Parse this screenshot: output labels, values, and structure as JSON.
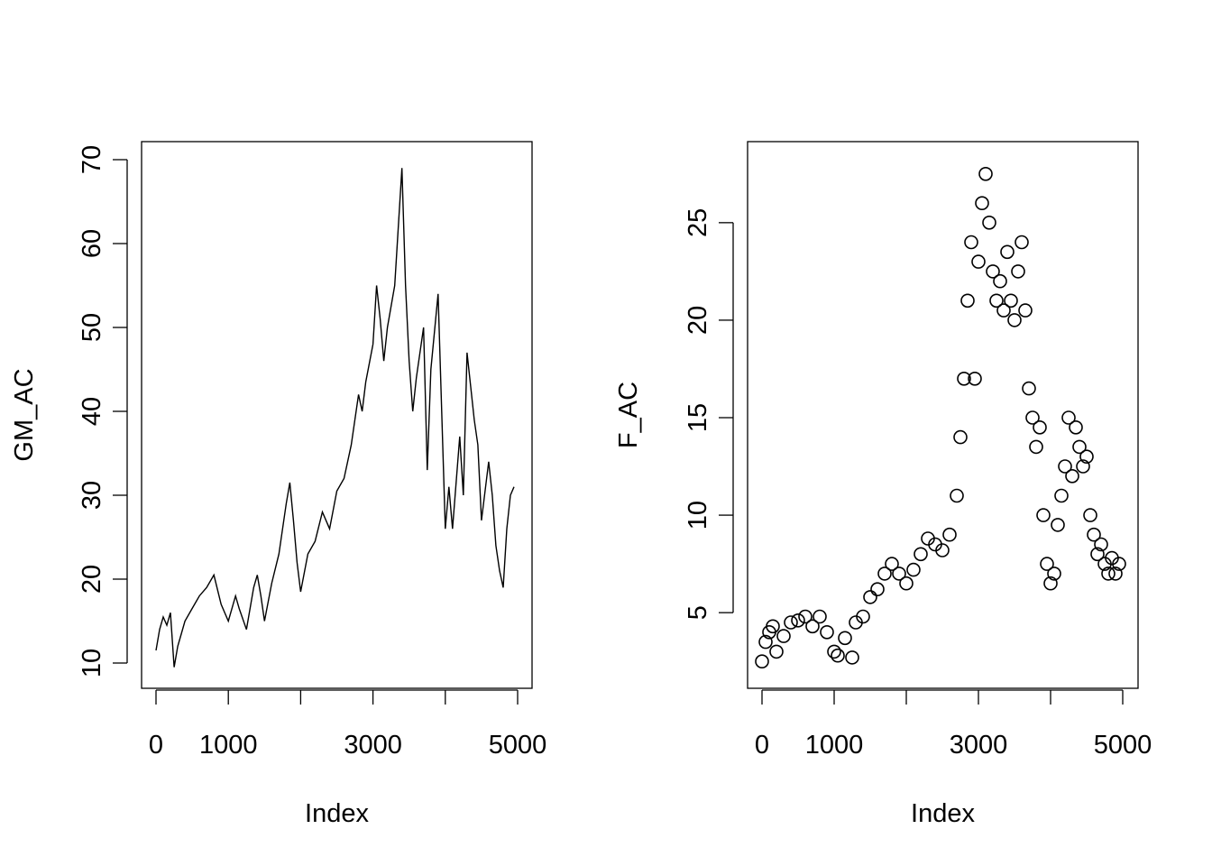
{
  "chart_data": [
    {
      "type": "line",
      "xlabel": "Index",
      "ylabel": "GM_AC",
      "xlim": [
        0,
        5000
      ],
      "ylim": [
        10,
        70
      ],
      "x_ticks": [
        0,
        1000,
        2000,
        3000,
        4000,
        5000
      ],
      "x_tick_labels": [
        "0",
        "1000",
        "",
        "3000",
        "",
        "5000"
      ],
      "y_ticks": [
        10,
        20,
        30,
        40,
        50,
        60,
        70
      ],
      "y_tick_labels": [
        "10",
        "20",
        "30",
        "40",
        "50",
        "60",
        "70"
      ],
      "series": [
        {
          "x": [
            0,
            50,
            100,
            150,
            200,
            250,
            300,
            350,
            400,
            500,
            600,
            700,
            800,
            900,
            1000,
            1100,
            1150,
            1250,
            1350,
            1400,
            1450,
            1500,
            1600,
            1700,
            1800,
            1850,
            1900,
            1950,
            2000,
            2100,
            2200,
            2300,
            2400,
            2500,
            2600,
            2700,
            2800,
            2850,
            2900,
            3000,
            3050,
            3100,
            3150,
            3200,
            3300,
            3350,
            3400,
            3450,
            3500,
            3550,
            3600,
            3700,
            3750,
            3800,
            3900,
            3950,
            4000,
            4050,
            4100,
            4200,
            4250,
            4300,
            4350,
            4400,
            4450,
            4500,
            4600,
            4650,
            4700,
            4750,
            4800,
            4850,
            4900,
            4950
          ],
          "values": [
            11.5,
            14.0,
            15.5,
            14.5,
            16.0,
            9.5,
            12.0,
            13.5,
            15.0,
            16.5,
            18.0,
            19.0,
            20.5,
            17.0,
            15.0,
            18.0,
            16.5,
            14.0,
            19.0,
            20.5,
            18.0,
            15.0,
            19.5,
            23.0,
            29.0,
            31.5,
            27.0,
            22.0,
            18.5,
            23.0,
            24.5,
            28.0,
            26.0,
            30.5,
            32.0,
            36.0,
            42.0,
            40.0,
            43.5,
            48.0,
            55.0,
            51.0,
            46.0,
            50.0,
            55.0,
            62.0,
            69.0,
            55.0,
            46.0,
            40.0,
            44.0,
            50.0,
            33.0,
            45.0,
            54.0,
            40.0,
            26.0,
            31.0,
            26.0,
            37.0,
            30.0,
            47.0,
            43.0,
            39.0,
            36.0,
            27.0,
            34.0,
            30.0,
            24.0,
            21.0,
            19.0,
            26.0,
            30.0,
            31.0
          ]
        }
      ]
    },
    {
      "type": "scatter",
      "xlabel": "Index",
      "ylabel": "F_AC",
      "xlim": [
        0,
        5000
      ],
      "ylim": [
        2,
        28
      ],
      "x_ticks": [
        0,
        1000,
        2000,
        3000,
        4000,
        5000
      ],
      "x_tick_labels": [
        "0",
        "1000",
        "",
        "3000",
        "",
        "5000"
      ],
      "y_ticks": [
        5,
        10,
        15,
        20,
        25
      ],
      "y_tick_labels": [
        "5",
        "10",
        "15",
        "20",
        "25"
      ],
      "series": [
        {
          "x": [
            0,
            50,
            100,
            150,
            200,
            300,
            400,
            500,
            600,
            700,
            800,
            900,
            1000,
            1050,
            1150,
            1250,
            1300,
            1400,
            1500,
            1600,
            1700,
            1800,
            1900,
            2000,
            2100,
            2200,
            2300,
            2400,
            2500,
            2600,
            2700,
            2750,
            2800,
            2850,
            2900,
            2950,
            3000,
            3050,
            3100,
            3150,
            3200,
            3250,
            3300,
            3350,
            3400,
            3450,
            3500,
            3550,
            3600,
            3650,
            3700,
            3750,
            3800,
            3850,
            3900,
            3950,
            4000,
            4050,
            4100,
            4150,
            4200,
            4250,
            4300,
            4350,
            4400,
            4450,
            4500,
            4550,
            4600,
            4650,
            4700,
            4750,
            4800,
            4850,
            4900,
            4950
          ],
          "values": [
            2.5,
            3.5,
            4.0,
            4.3,
            3.0,
            3.8,
            4.5,
            4.6,
            4.8,
            4.3,
            4.8,
            4.0,
            3.0,
            2.8,
            3.7,
            2.7,
            4.5,
            4.8,
            5.8,
            6.2,
            7.0,
            7.5,
            7.0,
            6.5,
            7.2,
            8.0,
            8.8,
            8.5,
            8.2,
            9.0,
            11.0,
            14.0,
            17.0,
            21.0,
            24.0,
            17.0,
            23.0,
            26.0,
            27.5,
            25.0,
            22.5,
            21.0,
            22.0,
            20.5,
            23.5,
            21.0,
            20.0,
            22.5,
            24.0,
            20.5,
            16.5,
            15.0,
            13.5,
            14.5,
            10.0,
            7.5,
            6.5,
            7.0,
            9.5,
            11.0,
            12.5,
            15.0,
            12.0,
            14.5,
            13.5,
            12.5,
            13.0,
            10.0,
            9.0,
            8.0,
            8.5,
            7.5,
            7.0,
            7.8,
            7.0,
            7.5
          ]
        }
      ]
    }
  ]
}
